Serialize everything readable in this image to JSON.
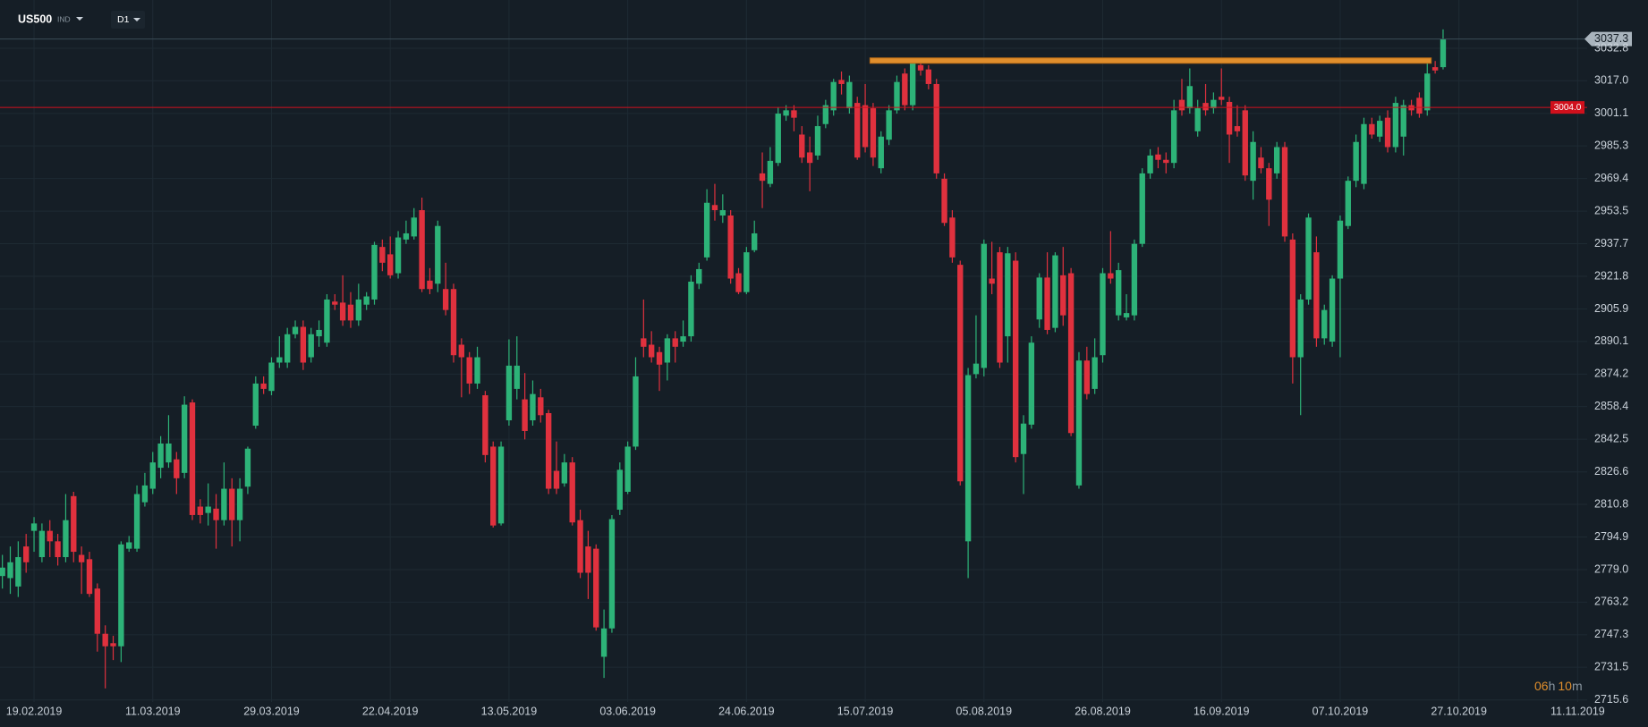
{
  "header": {
    "symbol": "US500",
    "market": "IND",
    "timeframe": "D1"
  },
  "countdown": {
    "hours": "06",
    "h": "h",
    "minutes": "10",
    "m": "m"
  },
  "chart_data": {
    "type": "candlestick",
    "up_color": "#2db378",
    "down_color": "#e0313e",
    "grid": true,
    "ylim": [
      2714.6,
      3056.3
    ],
    "yticks": [
      3032.8,
      {
        "value": 3017,
        "label": "3017.0"
      },
      3001.1,
      2985.3,
      2969.4,
      2953.5,
      2937.7,
      2921.8,
      2905.9,
      2890.1,
      2874.2,
      2858.4,
      2842.5,
      2826.6,
      2810.8,
      2794.9,
      {
        "value": 2779,
        "label": "2779.0"
      },
      2763.2,
      2747.3,
      2731.5,
      2715.6
    ],
    "xlim": [
      -0.3,
      200.2
    ],
    "xticks": [
      {
        "value": 4,
        "label": "19.02.2019"
      },
      {
        "value": 19,
        "label": "11.03.2019"
      },
      {
        "value": 34,
        "label": "29.03.2019"
      },
      {
        "value": 49,
        "label": "22.04.2019"
      },
      {
        "value": 64,
        "label": "13.05.2019"
      },
      {
        "value": 79,
        "label": "03.06.2019"
      },
      {
        "value": 94,
        "label": "24.06.2019"
      },
      {
        "value": 109,
        "label": "15.07.2019"
      },
      {
        "value": 124,
        "label": "05.08.2019"
      },
      {
        "value": 139,
        "label": "26.08.2019"
      },
      {
        "value": 154,
        "label": "16.09.2019"
      },
      {
        "value": 169,
        "label": "07.10.2019"
      },
      {
        "value": 184,
        "label": "27.10.2019"
      },
      {
        "value": 199,
        "label": "11.11.2019"
      }
    ],
    "current_price": {
      "value": 3037.3,
      "color": "#a9b4bd",
      "line_color": "#3b4b57"
    },
    "level": {
      "value": 3004,
      "label": "3004.0",
      "color": "#d0101c"
    },
    "resistance": {
      "value": 3026.8,
      "x": [
        109.6,
        180.5
      ],
      "color": "#e08e2c"
    },
    "open": [
      2775.9,
      2774.9,
      2770.8,
      2790.3,
      2797.9,
      2785.1,
      2797.9,
      2792.8,
      2785.1,
      2814.8,
      2786.2,
      2784.1,
      2769.8,
      2747.8,
      2743.2,
      2741.7,
      2789.2,
      2789.2,
      2811.8,
      2818.4,
      2828.6,
      2831.2,
      2832.7,
      2826.1,
      2860.4,
      2809.7,
      2806.6,
      2808.7,
      2803.1,
      2818.4,
      2803.1,
      2819.4,
      2849.1,
      2869.6,
      2866.0,
      2879.8,
      2879.8,
      2893.6,
      2897.2,
      2882.4,
      2892.6,
      2889.5,
      2909.5,
      2909.0,
      2908.0,
      2900.3,
      2908.0,
      2910.5,
      2936.1,
      2932.5,
      2923.3,
      2939.7,
      2941.2,
      2954.0,
      2919.7,
      2918.2,
      2915.6,
      2915.6,
      2888.5,
      2882.4,
      2869.6,
      2863.9,
      2838.9,
      2801.5,
      2851.7,
      2867.0,
      2861.9,
      2851.7,
      2862.9,
      2855.2,
      2827.1,
      2821.0,
      2831.2,
      2803.1,
      2790.3,
      2789.2,
      2736.6,
      2750.4,
      2808.2,
      2816.9,
      2838.9,
      2891.6,
      2888.5,
      2884.9,
      2879.8,
      2891.6,
      2890.0,
      2892.6,
      2918.2,
      2931.0,
      2956.5,
      2951.4,
      2951.4,
      2923.3,
      2914.1,
      2934.5,
      2971.9,
      2966.8,
      2977.0,
      3000.0,
      3002.6,
      2990.8,
      2982.1,
      2980.6,
      2995.9,
      3002.6,
      3017.4,
      3003.6,
      3006.2,
      3005.1,
      3003.6,
      2974.4,
      2988.3,
      3002.6,
      3020.5,
      3005.1,
      3024.6,
      3022.5,
      3015.4,
      2969.3,
      2950.4,
      2927.4,
      2792.8,
      2874.2,
      2877.2,
      2920.7,
      2933.5,
      2892.6,
      2929.4,
      2835.3,
      2849.6,
      2900.8,
      2921.2,
      2896.7,
      2922.3,
      2923.3,
      2820.0,
      2880.8,
      2867.0,
      2883.4,
      2923.3,
      2902.8,
      2901.8,
      2902.8,
      2937.6,
      2971.9,
      2981.1,
      2978.5,
      2977.0,
      3007.7,
      3003.6,
      2992.4,
      3006.2,
      3003.6,
      3009.2,
      3006.7,
      2994.9,
      3002.6,
      2968.3,
      2979.6,
      2974.4,
      2971.9,
      2984.7,
      2939.7,
      2882.4,
      2910.5,
      2933.5,
      2891.6,
      2890.0,
      2920.7,
      2946.3,
      2968.3,
      2966.8,
      2995.9,
      2989.8,
      2999.0,
      2984.7,
      2989.8,
      3005.1,
      3008.7,
      3002.6,
      3023.6,
      3023.6
    ],
    "high": [
      2786.2,
      2790.3,
      2792.8,
      2796.4,
      2804.6,
      2801.5,
      2803.1,
      2796.4,
      2815.8,
      2816.9,
      2790.3,
      2787.7,
      2772.3,
      2751.9,
      2746.8,
      2792.8,
      2795.4,
      2820.0,
      2826.1,
      2836.3,
      2844.0,
      2854.2,
      2836.3,
      2863.4,
      2861.9,
      2813.3,
      2821.0,
      2815.8,
      2831.2,
      2823.5,
      2823.5,
      2838.9,
      2873.1,
      2873.1,
      2882.4,
      2892.6,
      2896.7,
      2900.3,
      2900.3,
      2896.7,
      2900.3,
      2913.1,
      2913.1,
      2922.3,
      2914.1,
      2918.2,
      2914.1,
      2938.6,
      2939.7,
      2941.2,
      2943.8,
      2948.9,
      2955.0,
      2960.1,
      2925.8,
      2948.9,
      2928.4,
      2918.2,
      2891.6,
      2884.9,
      2887.5,
      2866.0,
      2841.4,
      2841.4,
      2891.1,
      2892.6,
      2874.7,
      2871.1,
      2867.0,
      2856.8,
      2841.4,
      2835.3,
      2833.8,
      2808.2,
      2797.9,
      2791.3,
      2759.6,
      2805.6,
      2831.2,
      2841.4,
      2882.4,
      2910.5,
      2895.1,
      2887.5,
      2893.6,
      2895.1,
      2900.3,
      2922.3,
      2928.4,
      2964.2,
      2966.8,
      2961.7,
      2954.0,
      2925.8,
      2936.1,
      2948.9,
      2982.1,
      2984.7,
      3004.1,
      3005.1,
      3005.1,
      2994.9,
      2989.8,
      3000.0,
      3007.7,
      3017.9,
      3021.5,
      3019.5,
      3009.2,
      3015.4,
      3006.2,
      2992.4,
      3005.1,
      3019.5,
      3023.0,
      3028.2,
      3026.6,
      3024.6,
      3017.9,
      2971.9,
      2954.0,
      2929.4,
      2877.2,
      2902.8,
      2939.7,
      2938.6,
      2936.1,
      2936.1,
      2933.5,
      2854.2,
      2892.6,
      2923.3,
      2933.5,
      2933.5,
      2936.1,
      2925.8,
      2884.9,
      2887.5,
      2891.6,
      2925.8,
      2943.8,
      2928.4,
      2913.1,
      2939.7,
      2974.4,
      2983.7,
      2984.7,
      2982.1,
      3007.7,
      3017.9,
      3023.0,
      3007.7,
      3015.4,
      3011.3,
      3023.0,
      3009.2,
      3005.1,
      3005.1,
      2992.4,
      2984.7,
      2977.0,
      2987.2,
      2987.2,
      2942.7,
      2913.1,
      2952.4,
      2941.2,
      2908.0,
      2922.3,
      2951.4,
      2970.4,
      2990.8,
      2999.0,
      2999.0,
      3000.0,
      3002.6,
      3009.2,
      3007.7,
      3007.7,
      3011.3,
      3025.6,
      3026.6,
      3042.0
    ],
    "low": [
      2769.8,
      2767.2,
      2765.7,
      2777.5,
      2787.7,
      2782.6,
      2785.1,
      2781.0,
      2782.6,
      2782.6,
      2767.2,
      2765.7,
      2739.1,
      2721.2,
      2735.0,
      2734.0,
      2787.7,
      2787.7,
      2809.7,
      2815.8,
      2823.5,
      2828.6,
      2815.8,
      2823.5,
      2803.1,
      2801.5,
      2800.5,
      2789.2,
      2800.5,
      2790.3,
      2792.8,
      2815.8,
      2847.6,
      2864.5,
      2863.9,
      2877.2,
      2877.2,
      2891.6,
      2876.2,
      2879.8,
      2887.5,
      2887.5,
      2905.4,
      2897.7,
      2896.7,
      2897.7,
      2905.4,
      2908.0,
      2924.3,
      2920.7,
      2920.7,
      2937.6,
      2939.7,
      2914.1,
      2913.1,
      2914.1,
      2902.8,
      2879.8,
      2862.9,
      2864.5,
      2867.0,
      2831.2,
      2799.5,
      2800.5,
      2849.1,
      2861.9,
      2842.4,
      2849.1,
      2850.6,
      2815.8,
      2815.8,
      2819.4,
      2800.5,
      2774.9,
      2764.7,
      2749.3,
      2726.3,
      2748.3,
      2805.6,
      2815.8,
      2837.3,
      2882.4,
      2879.8,
      2866.0,
      2871.1,
      2879.8,
      2887.5,
      2890.0,
      2915.6,
      2929.4,
      2948.9,
      2947.8,
      2918.2,
      2913.1,
      2913.1,
      2933.5,
      2955.0,
      2965.2,
      2975.5,
      2997.5,
      2992.4,
      2977.0,
      2963.2,
      2978.5,
      2993.9,
      3000.0,
      3010.3,
      3001.0,
      2978.5,
      2982.1,
      2975.5,
      2971.9,
      2985.7,
      3001.0,
      3002.6,
      3002.6,
      3019.5,
      3012.8,
      2969.3,
      2946.3,
      2928.4,
      2820.0,
      2774.9,
      2872.1,
      2873.1,
      2913.1,
      2877.2,
      2879.8,
      2831.2,
      2815.8,
      2847.6,
      2896.7,
      2893.6,
      2894.6,
      2897.7,
      2844.0,
      2818.4,
      2861.9,
      2864.5,
      2879.8,
      2918.2,
      2900.3,
      2900.3,
      2900.3,
      2936.1,
      2969.3,
      2974.4,
      2971.9,
      2974.4,
      3000.0,
      3001.0,
      2989.8,
      3000.0,
      3001.0,
      3005.1,
      2977.0,
      2989.8,
      2968.3,
      2959.1,
      2971.9,
      2946.3,
      2969.3,
      2938.6,
      2869.6,
      2854.2,
      2908.0,
      2887.5,
      2888.5,
      2887.5,
      2882.4,
      2944.8,
      2965.2,
      2964.2,
      2988.8,
      2987.2,
      2982.1,
      2982.1,
      2980.6,
      3000.0,
      2999.0,
      3000.0,
      3020.5,
      3022.5
    ],
    "close": [
      2780.0,
      2782.6,
      2785.1,
      2782.6,
      2801.5,
      2797.9,
      2792.8,
      2785.1,
      2803.1,
      2787.7,
      2782.6,
      2767.2,
      2747.8,
      2741.7,
      2741.7,
      2791.3,
      2792.3,
      2815.8,
      2820.0,
      2831.2,
      2840.4,
      2840.4,
      2823.5,
      2859.3,
      2805.6,
      2805.6,
      2809.7,
      2803.1,
      2818.4,
      2803.1,
      2818.4,
      2837.9,
      2869.6,
      2867.0,
      2879.8,
      2882.4,
      2893.6,
      2897.2,
      2879.8,
      2893.6,
      2895.7,
      2910.5,
      2908.0,
      2900.3,
      2900.3,
      2910.5,
      2912.0,
      2937.1,
      2928.4,
      2922.3,
      2940.7,
      2942.7,
      2950.4,
      2915.6,
      2915.6,
      2946.3,
      2905.4,
      2883.4,
      2882.4,
      2869.6,
      2882.4,
      2834.8,
      2800.5,
      2838.9,
      2878.3,
      2878.3,
      2846.5,
      2864.5,
      2854.2,
      2818.4,
      2818.4,
      2831.2,
      2802.0,
      2777.5,
      2777.5,
      2750.9,
      2750.4,
      2803.6,
      2827.6,
      2838.9,
      2873.1,
      2887.5,
      2882.4,
      2878.8,
      2891.6,
      2887.5,
      2892.6,
      2919.2,
      2925.3,
      2957.6,
      2954.0,
      2954.0,
      2920.7,
      2914.1,
      2933.5,
      2942.7,
      2968.3,
      2978.0,
      3001.0,
      3002.6,
      2999.0,
      2979.6,
      2977.0,
      2994.9,
      3005.1,
      3016.4,
      3015.4,
      3016.4,
      2979.6,
      2984.7,
      2979.6,
      2989.8,
      3002.6,
      3016.4,
      3005.1,
      3025.6,
      3022.0,
      3015.4,
      2971.9,
      2947.8,
      2931.0,
      2822.0,
      2873.7,
      2879.3,
      2937.6,
      2918.2,
      2879.8,
      2933.0,
      2833.8,
      2850.1,
      2889.5,
      2921.2,
      2895.7,
      2932.0,
      2902.8,
      2845.5,
      2880.8,
      2864.5,
      2882.4,
      2923.3,
      2920.7,
      2924.8,
      2903.9,
      2937.6,
      2971.9,
      2980.6,
      2978.5,
      2977.0,
      3002.6,
      3002.6,
      3014.4,
      3003.6,
      3002.6,
      3007.7,
      3007.7,
      2990.8,
      2992.4,
      2970.9,
      2987.2,
      2974.4,
      2959.1,
      2984.7,
      2941.2,
      2882.4,
      2910.5,
      2950.4,
      2891.6,
      2905.4,
      2920.7,
      2948.9,
      2968.3,
      2987.2,
      2995.9,
      2990.8,
      2997.5,
      2984.7,
      3006.2,
      3005.1,
      3002.6,
      3001.0,
      3020.5,
      3022.0,
      3037.3
    ]
  }
}
